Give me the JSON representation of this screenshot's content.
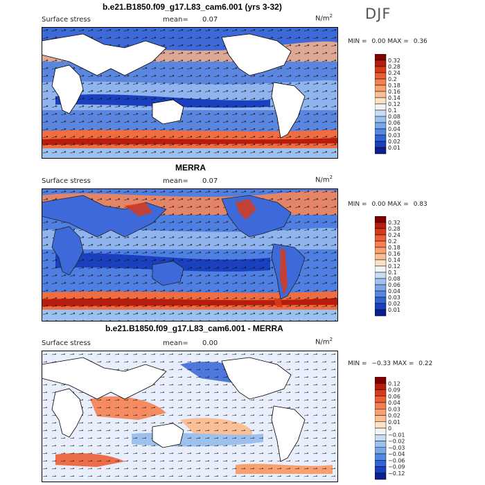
{
  "season": "DJF",
  "units_base": "N/m",
  "units_exp": "2",
  "panels": [
    {
      "title": "b.e21.B1850.f09_g17.L83_cam6.001 (yrs 3-32)",
      "variable": "Surface stress",
      "mean_label": "mean=",
      "mean_value": "0.07",
      "min_label": "MIN =",
      "min_value": "0.00",
      "max_label": "MAX =",
      "max_value": "0.36"
    },
    {
      "title": "MERRA",
      "variable": "Surface stress",
      "mean_label": "mean=",
      "mean_value": "0.07",
      "min_label": "MIN =",
      "min_value": "0.00",
      "max_label": "MAX =",
      "max_value": "0.83"
    },
    {
      "title": "b.e21.B1850.f09_g17.L83_cam6.001 - MERRA",
      "variable": "Surface stress",
      "mean_label": "mean=",
      "mean_value": "0.00",
      "min_label": "MIN =",
      "min_value": "−0.33",
      "max_label": "MAX =",
      "max_value": "0.22"
    }
  ],
  "colorbar_stress": {
    "labels": [
      "0.32",
      "0.28",
      "0.24",
      "0.2",
      "0.18",
      "0.16",
      "0.14",
      "0.12",
      "0.1",
      "0.08",
      "0.06",
      "0.04",
      "0.03",
      "0.02",
      "0.01"
    ],
    "colors": [
      "#800000",
      "#b71c0c",
      "#d93a1a",
      "#ec5f34",
      "#f57f50",
      "#f9a070",
      "#fbbf96",
      "#fde0c8",
      "#f4f4f4",
      "#c9dcf5",
      "#9dc1ef",
      "#7aa6ea",
      "#5587e3",
      "#2f64d6",
      "#1a3fbf",
      "#0d1f8f"
    ]
  },
  "colorbar_diff": {
    "labels": [
      "0.12",
      "0.09",
      "0.06",
      "0.04",
      "0.03",
      "0.02",
      "0.01",
      "0",
      "−0.01",
      "−0.02",
      "−0.03",
      "−0.04",
      "−0.06",
      "−0.09",
      "−0.12"
    ],
    "colors": [
      "#800000",
      "#b71c0c",
      "#d93a1a",
      "#ec5f34",
      "#f57f50",
      "#f9a070",
      "#fbbf96",
      "#fde0c8",
      "#f4f4f4",
      "#c9dcf5",
      "#9dc1ef",
      "#7aa6ea",
      "#5587e3",
      "#2f64d6",
      "#1a3fbf",
      "#0d1f8f"
    ]
  },
  "chart_data": [
    {
      "type": "heatmap",
      "title": "b.e21.B1850.f09_g17.L83_cam6.001 (yrs 3-32)",
      "subtitle": "Surface stress",
      "units": "N/m2",
      "mean": 0.07,
      "min": 0.0,
      "max": 0.36,
      "levels": [
        0.01,
        0.02,
        0.03,
        0.04,
        0.06,
        0.08,
        0.1,
        0.12,
        0.14,
        0.16,
        0.18,
        0.2,
        0.24,
        0.28,
        0.32
      ]
    },
    {
      "type": "heatmap",
      "title": "MERRA",
      "subtitle": "Surface stress",
      "units": "N/m2",
      "mean": 0.07,
      "min": 0.0,
      "max": 0.83,
      "levels": [
        0.01,
        0.02,
        0.03,
        0.04,
        0.06,
        0.08,
        0.1,
        0.12,
        0.14,
        0.16,
        0.18,
        0.2,
        0.24,
        0.28,
        0.32
      ]
    },
    {
      "type": "heatmap",
      "title": "b.e21.B1850.f09_g17.L83_cam6.001 - MERRA",
      "subtitle": "Surface stress",
      "units": "N/m2",
      "mean": 0.0,
      "min": -0.33,
      "max": 0.22,
      "levels": [
        -0.12,
        -0.09,
        -0.06,
        -0.04,
        -0.03,
        -0.02,
        -0.01,
        0,
        0.01,
        0.02,
        0.03,
        0.04,
        0.06,
        0.09,
        0.12
      ]
    }
  ]
}
